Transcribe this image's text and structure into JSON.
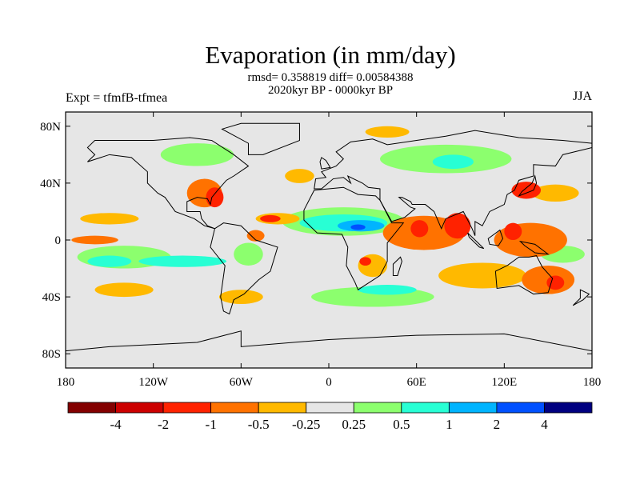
{
  "header": {
    "title": "Evaporation (in mm/day)",
    "stats": "rmsd= 0.358819 diff= 0.00584388",
    "period": "2020kyr BP - 0000kyr BP",
    "experiment": "Expt = tfmfB-tfmea",
    "season": "JJA"
  },
  "chart_data": {
    "type": "heatmap",
    "title": "Evaporation (in mm/day)",
    "projection": "cylindrical-equidistant",
    "lon_range": [
      -180,
      180
    ],
    "lat_range": [
      -90,
      90
    ],
    "x_ticks": [
      {
        "value": -180,
        "label": "180"
      },
      {
        "value": -120,
        "label": "120W"
      },
      {
        "value": -60,
        "label": "60W"
      },
      {
        "value": 0,
        "label": "0"
      },
      {
        "value": 60,
        "label": "60E"
      },
      {
        "value": 120,
        "label": "120E"
      },
      {
        "value": 180,
        "label": "180"
      }
    ],
    "y_ticks": [
      {
        "value": 80,
        "label": "80N"
      },
      {
        "value": 40,
        "label": "40N"
      },
      {
        "value": 0,
        "label": "0"
      },
      {
        "value": -40,
        "label": "40S"
      },
      {
        "value": -80,
        "label": "80S"
      }
    ],
    "colorbar": {
      "levels": [
        "-4",
        "-2",
        "-1",
        "-0.5",
        "-0.25",
        "0.25",
        "0.5",
        "1",
        "2",
        "4"
      ],
      "level_values": [
        -4,
        -2,
        -1,
        -0.5,
        -0.25,
        0.25,
        0.5,
        1,
        2,
        4
      ],
      "colors": [
        "#830000",
        "#cc0000",
        "#ff2200",
        "#ff7200",
        "#ffb900",
        "#e6e6e6",
        "#8cff6e",
        "#28ffd4",
        "#00b4ff",
        "#0050ff",
        "#000080"
      ]
    },
    "anomaly_regions": [
      {
        "lon": 65,
        "lat": 5,
        "dlon": 28,
        "dlat": 12,
        "value": -0.75
      },
      {
        "lon": 88,
        "lat": 10,
        "dlon": 9,
        "dlat": 9,
        "value": -1.5
      },
      {
        "lon": 62,
        "lat": 8,
        "dlon": 6,
        "dlat": 6,
        "value": -1.5
      },
      {
        "lon": 138,
        "lat": 0,
        "dlon": 25,
        "dlat": 12,
        "value": -0.75
      },
      {
        "lon": 126,
        "lat": 6,
        "dlon": 6,
        "dlat": 6,
        "value": -1.5
      },
      {
        "lon": 105,
        "lat": -25,
        "dlon": 30,
        "dlat": 9,
        "value": -0.4
      },
      {
        "lon": 150,
        "lat": -28,
        "dlon": 18,
        "dlat": 10,
        "value": -0.75
      },
      {
        "lon": 155,
        "lat": -30,
        "dlon": 6,
        "dlat": 5,
        "value": -1.5
      },
      {
        "lon": 135,
        "lat": 35,
        "dlon": 10,
        "dlat": 6,
        "value": -1.5
      },
      {
        "lon": 155,
        "lat": 33,
        "dlon": 16,
        "dlat": 6,
        "value": -0.4
      },
      {
        "lon": 10,
        "lat": 13,
        "dlon": 42,
        "dlat": 10,
        "value": 0.35
      },
      {
        "lon": 10,
        "lat": 12,
        "dlon": 30,
        "dlat": 6,
        "value": 0.75
      },
      {
        "lon": 22,
        "lat": 10,
        "dlon": 16,
        "dlat": 4,
        "value": 1.5
      },
      {
        "lon": 20,
        "lat": 9,
        "dlon": 5,
        "dlat": 2,
        "value": 3
      },
      {
        "lon": -35,
        "lat": 15,
        "dlon": 15,
        "dlat": 4,
        "value": -0.4
      },
      {
        "lon": -40,
        "lat": 15,
        "dlon": 7,
        "dlat": 2.5,
        "value": -1.5
      },
      {
        "lon": -160,
        "lat": 0,
        "dlon": 16,
        "dlat": 3,
        "value": -0.75
      },
      {
        "lon": -140,
        "lat": -12,
        "dlon": 32,
        "dlat": 8,
        "value": 0.35
      },
      {
        "lon": -150,
        "lat": -15,
        "dlon": 15,
        "dlat": 4,
        "value": 0.75
      },
      {
        "lon": -100,
        "lat": -15,
        "dlon": 30,
        "dlat": 4,
        "value": 0.75
      },
      {
        "lon": -150,
        "lat": 15,
        "dlon": 20,
        "dlat": 4,
        "value": -0.4
      },
      {
        "lon": -85,
        "lat": 33,
        "dlon": 12,
        "dlat": 10,
        "value": -0.75
      },
      {
        "lon": -78,
        "lat": 30,
        "dlon": 6,
        "dlat": 7,
        "value": -1.5
      },
      {
        "lon": 80,
        "lat": 57,
        "dlon": 45,
        "dlat": 10,
        "value": 0.35
      },
      {
        "lon": 85,
        "lat": 55,
        "dlon": 14,
        "dlat": 5,
        "value": 0.75
      },
      {
        "lon": -90,
        "lat": 60,
        "dlon": 25,
        "dlat": 8,
        "value": 0.35
      },
      {
        "lon": -140,
        "lat": -35,
        "dlon": 20,
        "dlat": 5,
        "value": -0.4
      },
      {
        "lon": -60,
        "lat": -40,
        "dlon": 15,
        "dlat": 5,
        "value": -0.4
      },
      {
        "lon": 30,
        "lat": -40,
        "dlon": 42,
        "dlat": 7,
        "value": 0.35
      },
      {
        "lon": 40,
        "lat": -35,
        "dlon": 20,
        "dlat": 3.5,
        "value": 0.75
      },
      {
        "lon": 30,
        "lat": -18,
        "dlon": 10,
        "dlat": 8,
        "value": -0.4
      },
      {
        "lon": 25,
        "lat": -15,
        "dlon": 4,
        "dlat": 3,
        "value": -1.5
      },
      {
        "lon": -55,
        "lat": -10,
        "dlon": 10,
        "dlat": 8,
        "value": 0.35
      },
      {
        "lon": -50,
        "lat": 3,
        "dlon": 6,
        "dlat": 4,
        "value": -0.75
      },
      {
        "lon": -20,
        "lat": 45,
        "dlon": 10,
        "dlat": 5,
        "value": -0.4
      },
      {
        "lon": 40,
        "lat": 76,
        "dlon": 15,
        "dlat": 4,
        "value": -0.4
      },
      {
        "lon": 160,
        "lat": -10,
        "dlon": 15,
        "dlat": 6,
        "value": 0.35
      }
    ]
  }
}
